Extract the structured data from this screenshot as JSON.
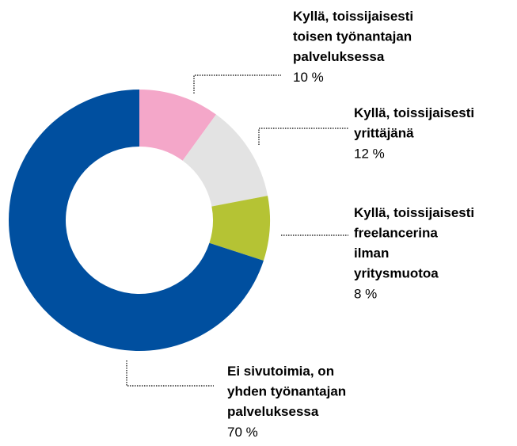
{
  "chart_data": {
    "type": "donut",
    "categories": [
      "Kyllä, toissijaisesti\ntoisen työnantajan\npalveluksessa",
      "Kyllä, toissijaisesti\nyrittäjänä",
      "Kyllä, toissijaisesti\nfreelancerina\nilman\nyritysmuotoa",
      "Ei sivutoimia, on\nyhden työnantajan\npalveluksessa"
    ],
    "values": [
      10,
      12,
      8,
      70
    ],
    "value_labels": [
      "10 %",
      "12 %",
      "8 %",
      "70 %"
    ],
    "colors": [
      "#f4a7c9",
      "#e3e3e3",
      "#b5c334",
      "#004f9f"
    ]
  }
}
